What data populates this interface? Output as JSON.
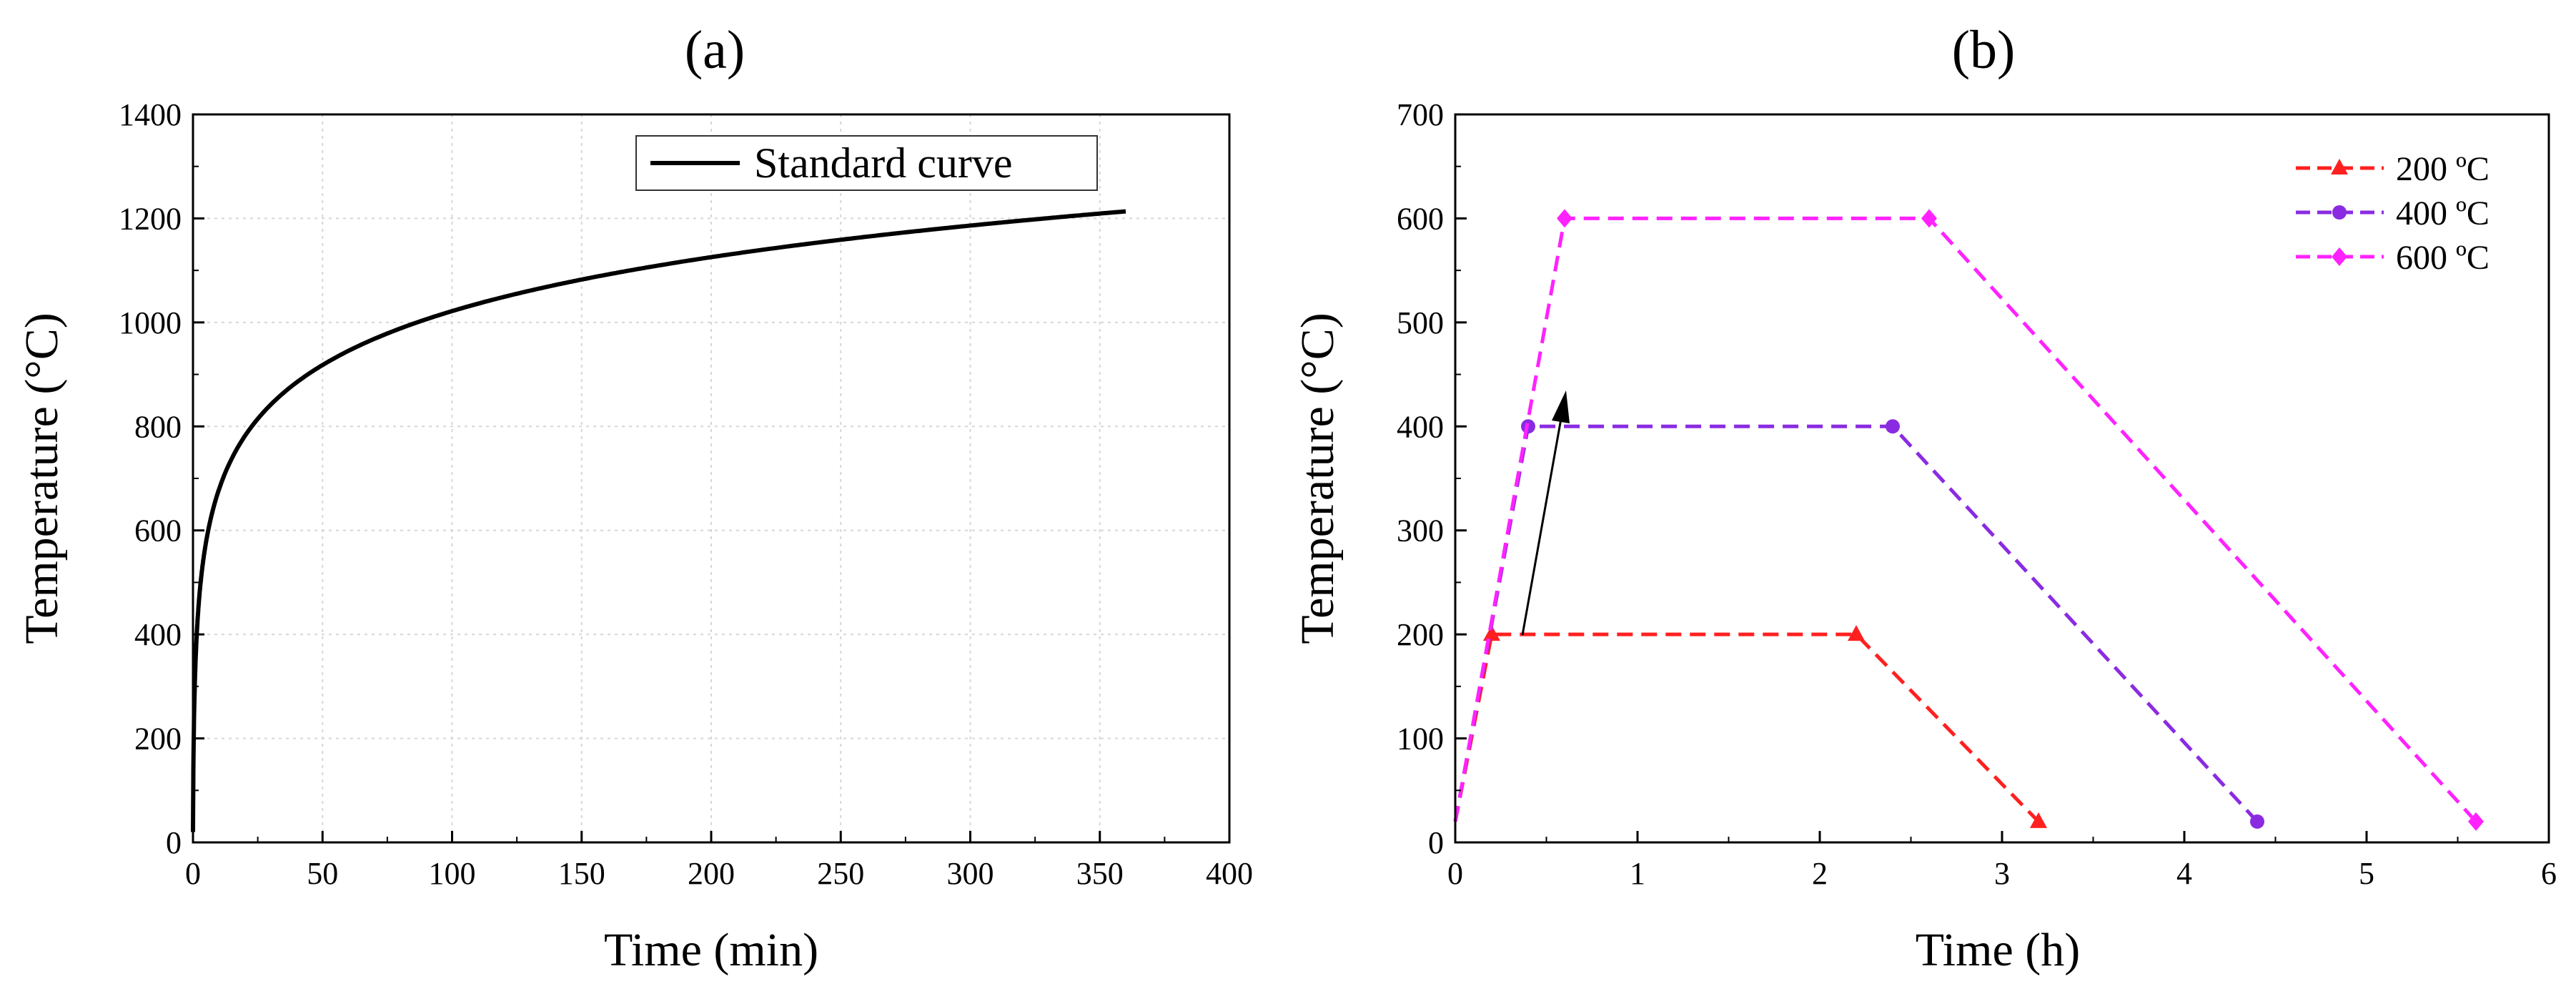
{
  "chart_data": [
    {
      "type": "line",
      "panel_label": "(a)",
      "xlabel": "Time (min)",
      "ylabel": "Temperature (°C)",
      "xlim": [
        0,
        400
      ],
      "ylim": [
        0,
        1400
      ],
      "xticks": [
        0,
        50,
        100,
        150,
        200,
        250,
        300,
        350,
        400
      ],
      "yticks": [
        0,
        200,
        400,
        600,
        800,
        1000,
        1200,
        1400
      ],
      "grid": true,
      "legend": "top-right",
      "series": [
        {
          "name": "Standard curve",
          "color": "#000000",
          "formula": "T = 20 + 345*log10(8t + 1)",
          "x": [
            0,
            0.5,
            1,
            2,
            3,
            5,
            7,
            10,
            15,
            20,
            30,
            40,
            50,
            60,
            80,
            100,
            120,
            150,
            180,
            200,
            240,
            270,
            300,
            330,
            360
          ],
          "y": [
            20,
            261,
            349,
            445,
            502,
            576,
            626,
            678,
            739,
            781,
            842,
            885,
            918,
            945,
            988,
            1022,
            1049,
            1082,
            1110,
            1125,
            1153,
            1170,
            1186,
            1200,
            1214
          ]
        }
      ]
    },
    {
      "type": "line",
      "panel_label": "(b)",
      "xlabel": "Time (h)",
      "ylabel": "Temperature (°C)",
      "xlim": [
        0,
        6
      ],
      "ylim": [
        0,
        700
      ],
      "xticks": [
        0,
        1,
        2,
        3,
        4,
        5,
        6
      ],
      "yticks": [
        0,
        100,
        200,
        300,
        400,
        500,
        600,
        700
      ],
      "grid": false,
      "legend": "top-right",
      "annotation": "arrow from 200 °C plateau start toward 400 °C",
      "series": [
        {
          "name": "200 ºC",
          "color": "#ff2020",
          "marker": "triangle",
          "x": [
            0,
            0.2,
            2.2,
            3.2
          ],
          "y": [
            20,
            200,
            200,
            20
          ]
        },
        {
          "name": "400 ºC",
          "color": "#8a2be2",
          "marker": "circle",
          "x": [
            0,
            0.4,
            2.4,
            4.4
          ],
          "y": [
            20,
            400,
            400,
            20
          ]
        },
        {
          "name": "600 ºC",
          "color": "#ff22ff",
          "marker": "diamond",
          "x": [
            0,
            0.6,
            2.6,
            5.6
          ],
          "y": [
            20,
            600,
            600,
            20
          ]
        }
      ]
    }
  ]
}
